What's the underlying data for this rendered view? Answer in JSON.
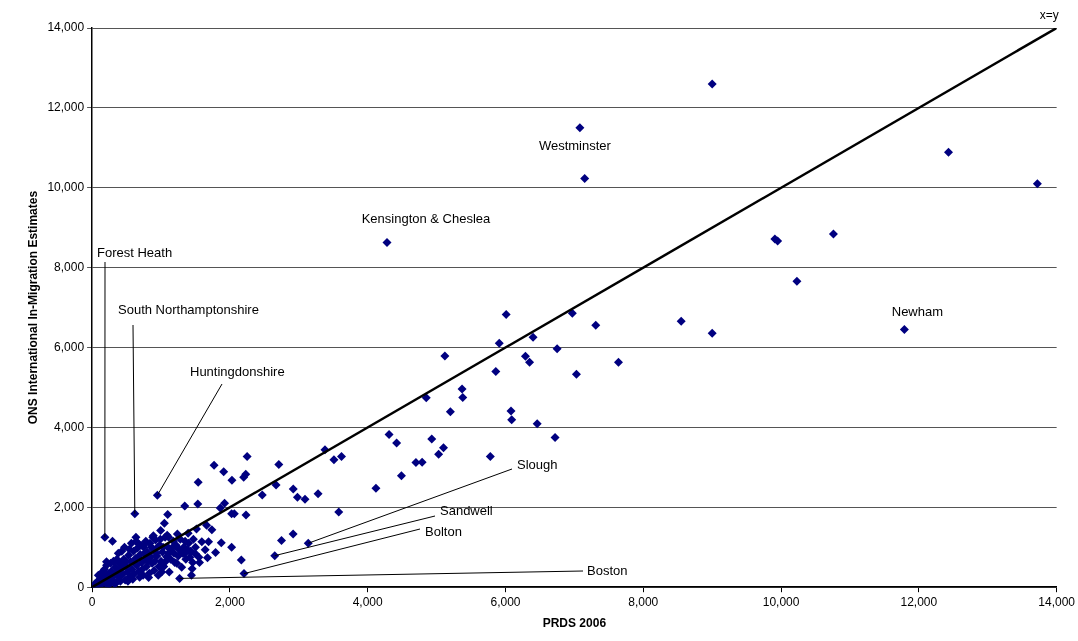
{
  "chart_data": {
    "type": "scatter",
    "xlabel": "PRDS 2006",
    "ylabel": "ONS International In-Migration Estimates",
    "xlim": [
      0,
      14000
    ],
    "ylim": [
      0,
      14000
    ],
    "xticks": [
      {
        "value": 0,
        "label": "0"
      },
      {
        "value": 2000,
        "label": "2,000"
      },
      {
        "value": 4000,
        "label": "4,000"
      },
      {
        "value": 6000,
        "label": "6,000"
      },
      {
        "value": 8000,
        "label": "8,000"
      },
      {
        "value": 10000,
        "label": "10,000"
      },
      {
        "value": 12000,
        "label": "12,000"
      },
      {
        "value": 14000,
        "label": "14,000"
      }
    ],
    "yticks": [
      {
        "value": 0,
        "label": "0"
      },
      {
        "value": 2000,
        "label": "2,000"
      },
      {
        "value": 4000,
        "label": "4,000"
      },
      {
        "value": 6000,
        "label": "6,000"
      },
      {
        "value": 8000,
        "label": "8,000"
      },
      {
        "value": 10000,
        "label": "10,000"
      },
      {
        "value": 12000,
        "label": "12,000"
      },
      {
        "value": 14000,
        "label": "14,000"
      }
    ],
    "grid": "y",
    "legend": false,
    "marker": "diamond",
    "series": [
      {
        "color": "#000080",
        "x": [
          9000,
          7080,
          7150,
          12430,
          13720,
          9910,
          9950,
          10760,
          10230,
          11790,
          6010,
          6970,
          7310,
          8550,
          9000,
          6400,
          5910,
          6750,
          6290,
          6350,
          7640,
          7030,
          5120,
          5860,
          4850,
          5370,
          5380,
          5200,
          4280,
          6080,
          6090,
          6460,
          6720,
          4310,
          4420,
          4930,
          5100,
          5030,
          4700,
          4790,
          5780,
          4490,
          2250,
          1770,
          2710,
          1910,
          2230,
          2200,
          2030,
          1540,
          3380,
          3510,
          3620,
          2670,
          2920,
          2980,
          3090,
          3280,
          2470,
          4120,
          3580,
          947,
          620,
          1345,
          1534,
          1860,
          1923,
          2025,
          2064,
          2234,
          1097,
          1049,
          296,
          185,
          3137,
          2749,
          2918,
          2651,
          2205,
          2166,
          2025,
          1875,
          1661,
          1738,
          1592,
          1690,
          1515,
          1394,
          1452,
          1270,
          1442,
          1340,
          1432,
          1500,
          1559,
          1641,
          1792,
          1675,
          1238,
          636,
          787,
          675,
          995,
          1112,
          889,
          209,
          20,
          40,
          60,
          80,
          100,
          120,
          150,
          170,
          200,
          220,
          250,
          260,
          280,
          300,
          320,
          340,
          350,
          370,
          390,
          400,
          420,
          440,
          460,
          480,
          500,
          510,
          530,
          550,
          560,
          580,
          600,
          610,
          630,
          650,
          660,
          680,
          700,
          720,
          740,
          750,
          770,
          790,
          800,
          820,
          840,
          850,
          870,
          890,
          900,
          920,
          940,
          960,
          980,
          1000,
          1020,
          1040,
          1060,
          1080,
          1100,
          1120,
          1150,
          1180,
          1200,
          1220,
          1250,
          1280,
          1300,
          1330,
          1360,
          1400,
          1430,
          1460,
          1500,
          1550,
          90,
          130,
          180,
          210,
          230,
          270,
          310,
          330,
          360,
          380,
          410,
          430,
          450,
          470,
          490,
          520,
          540,
          570,
          590,
          620,
          640,
          670,
          690,
          710,
          730,
          760,
          780,
          810,
          830,
          860,
          880,
          910,
          930,
          950,
          970,
          990,
          1010,
          1030,
          1070,
          1090,
          1110,
          1140,
          1170,
          1190,
          1230,
          1260,
          1310,
          1350,
          1380,
          1420,
          1470
        ],
        "values": [
          12600,
          11500,
          10230,
          10890,
          10100,
          8720,
          8670,
          8840,
          7660,
          6450,
          6830,
          6860,
          6560,
          6660,
          6360,
          6260,
          6110,
          5970,
          5780,
          5630,
          5630,
          5330,
          5790,
          5400,
          4740,
          4960,
          4750,
          4390,
          8630,
          4410,
          4190,
          4090,
          3750,
          3820,
          3610,
          3710,
          3490,
          3330,
          3120,
          3130,
          3270,
          2790,
          3270,
          3050,
          3070,
          2890,
          2830,
          2750,
          2680,
          2630,
          3440,
          3190,
          3270,
          2560,
          2460,
          2250,
          2200,
          2340,
          2310,
          2480,
          1880,
          2300,
          1840,
          2030,
          2080,
          1980,
          2100,
          1840,
          1840,
          1810,
          1820,
          1600,
          1150,
          1250,
          1100,
          1170,
          1330,
          790,
          340,
          680,
          1000,
          1110,
          1550,
          1440,
          1140,
          1140,
          1460,
          1350,
          460,
          220,
          300,
          840,
          870,
          840,
          620,
          940,
          870,
          740,
          1330,
          1250,
          1110,
          1080,
          1420,
          1250,
          1290,
          640,
          30,
          80,
          20,
          150,
          60,
          200,
          100,
          260,
          150,
          320,
          80,
          220,
          400,
          180,
          300,
          500,
          120,
          380,
          250,
          600,
          450,
          320,
          700,
          180,
          520,
          380,
          800,
          260,
          640,
          450,
          900,
          330,
          720,
          550,
          980,
          400,
          820,
          620,
          300,
          1000,
          700,
          520,
          880,
          240,
          1100,
          760,
          600,
          950,
          420,
          1180,
          780,
          300,
          1050,
          650,
          880,
          520,
          1250,
          760,
          1000,
          380,
          900,
          1150,
          620,
          1050,
          780,
          1200,
          500,
          1000,
          700,
          1100,
          900,
          620,
          1000,
          750,
          300,
          350,
          450,
          550,
          40,
          600,
          650,
          80,
          700,
          850,
          150,
          900,
          550,
          1000,
          650,
          150,
          950,
          1100,
          200,
          600,
          1150,
          750,
          250,
          1050,
          450,
          850,
          1150,
          650,
          350,
          1000,
          1250,
          650,
          850,
          1000,
          520,
          1200,
          380,
          1000,
          650,
          1300,
          850,
          700,
          1000,
          850,
          600,
          950,
          850,
          1150,
          950,
          750,
          1200
        ]
      },
      {
        "type": "line",
        "name": "x=y",
        "color": "#000000",
        "marker": "none",
        "x": [
          0,
          14000
        ],
        "values": [
          0,
          14000
        ]
      }
    ],
    "annotations": [
      {
        "text": "Westminster",
        "x": 7080,
        "y": 11500
      },
      {
        "text": "Kensington & Cheslea",
        "x": 4280,
        "y": 8630
      },
      {
        "text": "Newham",
        "x": 11790,
        "y": 6450
      },
      {
        "text": "Forest Heath",
        "x": 185,
        "y": 1250
      },
      {
        "text": "South Northamptonshire",
        "x": 620,
        "y": 1840
      },
      {
        "text": "Huntingdonshire",
        "x": 947,
        "y": 2300
      },
      {
        "text": "Slough",
        "x": 3137,
        "y": 1100
      },
      {
        "text": "Sandwell",
        "x": 2651,
        "y": 790
      },
      {
        "text": "Bolton",
        "x": 2205,
        "y": 340
      },
      {
        "text": "Boston",
        "x": 1270,
        "y": 220
      }
    ]
  }
}
